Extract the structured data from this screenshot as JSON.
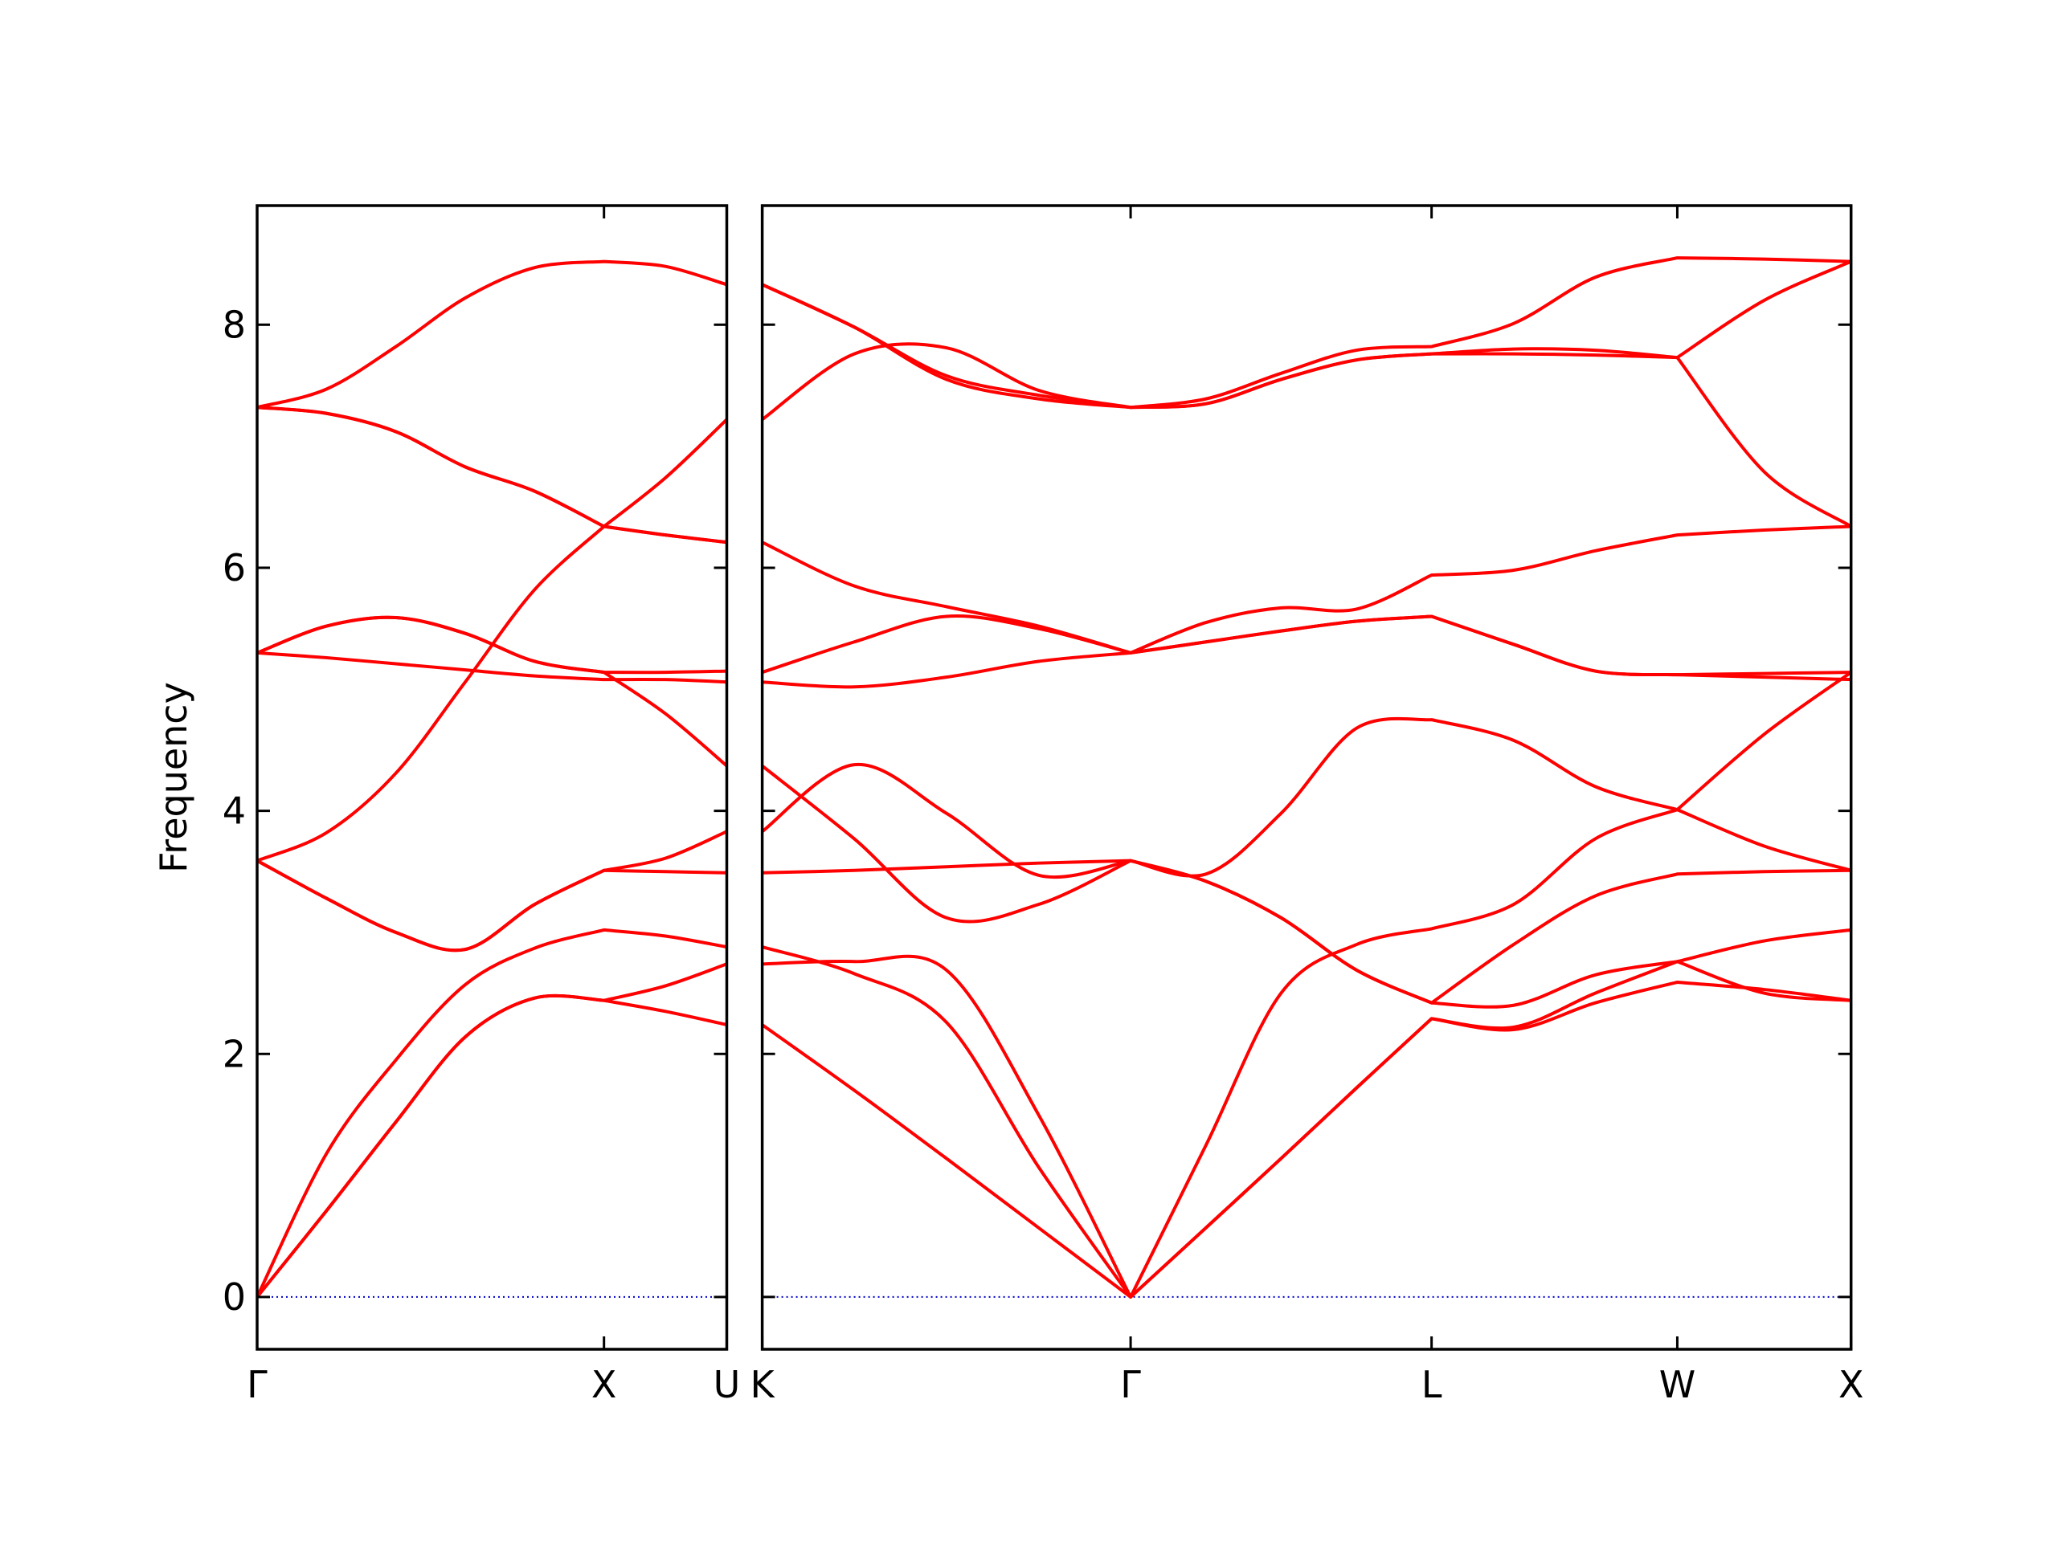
{
  "chart_data": [
    {
      "type": "line",
      "ylabel": "Frequency",
      "color": "#ff0000",
      "zero_line": 0,
      "zero_line_color": "#0000cc",
      "xlim": [
        0,
        1.354
      ],
      "ylim": [
        -0.43,
        8.98
      ],
      "xticks": [
        {
          "value": 0,
          "label": "Γ"
        },
        {
          "value": 1,
          "label": "X"
        },
        {
          "value": 1.354,
          "label": "U"
        }
      ],
      "yticks": [
        0,
        2,
        4,
        6,
        8
      ],
      "x": [
        0,
        0.2,
        0.4,
        0.6,
        0.8,
        1.0,
        1.177,
        1.354
      ],
      "series": [
        {
          "values": [
            0,
            0.71,
            1.44,
            2.14,
            2.46,
            2.44,
            2.35,
            2.24
          ]
        },
        {
          "values": [
            0,
            0.71,
            1.44,
            2.14,
            2.46,
            2.44,
            2.56,
            2.74
          ]
        },
        {
          "values": [
            0,
            1.18,
            1.95,
            2.57,
            2.87,
            3.02,
            2.97,
            2.88
          ]
        },
        {
          "values": [
            3.59,
            3.28,
            3.0,
            2.86,
            3.23,
            3.51,
            3.61,
            3.83
          ]
        },
        {
          "values": [
            3.59,
            3.28,
            3.0,
            2.86,
            3.23,
            3.51,
            3.5,
            3.49
          ]
        },
        {
          "values": [
            3.59,
            3.82,
            4.31,
            5.06,
            5.82,
            6.34,
            6.74,
            7.22
          ]
        },
        {
          "values": [
            5.3,
            5.26,
            5.21,
            5.16,
            5.11,
            5.08,
            5.08,
            5.06
          ]
        },
        {
          "values": [
            5.3,
            5.52,
            5.59,
            5.46,
            5.23,
            5.14,
            4.8,
            4.37
          ]
        },
        {
          "values": [
            5.3,
            5.52,
            5.59,
            5.46,
            5.23,
            5.14,
            5.14,
            5.15
          ]
        },
        {
          "values": [
            7.32,
            7.27,
            7.12,
            6.83,
            6.63,
            6.34,
            6.27,
            6.21
          ]
        },
        {
          "values": [
            7.32,
            7.27,
            7.12,
            6.83,
            6.63,
            6.34,
            6.27,
            6.21
          ]
        },
        {
          "values": [
            7.32,
            7.47,
            7.82,
            8.22,
            8.47,
            8.52,
            8.48,
            8.33
          ]
        }
      ]
    },
    {
      "type": "line",
      "color": "#ff0000",
      "zero_line": 0,
      "zero_line_color": "#0000cc",
      "xlim": [
        1.354,
        4.487
      ],
      "ylim": [
        -0.43,
        8.98
      ],
      "xticks": [
        {
          "value": 1.354,
          "label": "K"
        },
        {
          "value": 2.414,
          "label": "Γ"
        },
        {
          "value": 3.28,
          "label": "L"
        },
        {
          "value": 3.987,
          "label": "W"
        },
        {
          "value": 4.487,
          "label": "X"
        }
      ],
      "x": [
        1.354,
        1.619,
        1.884,
        2.149,
        2.414,
        2.631,
        2.847,
        3.064,
        3.28,
        3.516,
        3.751,
        3.987,
        4.237,
        4.487
      ],
      "series": [
        {
          "values": [
            2.24,
            1.7,
            1.14,
            0.57,
            0,
            0.57,
            1.14,
            1.72,
            2.29,
            2.2,
            2.42,
            2.59,
            2.53,
            2.44
          ]
        },
        {
          "values": [
            2.88,
            2.66,
            2.26,
            1.07,
            0,
            0.57,
            1.14,
            1.72,
            2.29,
            2.22,
            2.5,
            2.76,
            2.5,
            2.44
          ]
        },
        {
          "values": [
            2.74,
            2.76,
            2.69,
            1.5,
            0,
            1.25,
            2.5,
            2.9,
            3.03,
            3.23,
            3.77,
            4.01,
            4.63,
            5.14
          ]
        },
        {
          "values": [
            3.49,
            3.51,
            3.54,
            3.57,
            3.59,
            3.42,
            3.12,
            2.69,
            2.42,
            2.9,
            3.3,
            3.48,
            3.5,
            3.51
          ]
        },
        {
          "values": [
            3.83,
            4.38,
            3.98,
            3.47,
            3.59,
            3.42,
            3.12,
            2.69,
            2.42,
            2.4,
            2.65,
            2.76,
            2.93,
            3.02
          ]
        },
        {
          "values": [
            4.37,
            3.77,
            3.12,
            3.23,
            3.59,
            3.48,
            3.98,
            4.68,
            4.75,
            4.58,
            4.2,
            4.01,
            3.71,
            3.51
          ]
        },
        {
          "values": [
            5.06,
            5.02,
            5.1,
            5.23,
            5.3,
            5.39,
            5.48,
            5.56,
            5.6,
            5.37,
            5.15,
            5.12,
            5.1,
            5.08
          ]
        },
        {
          "values": [
            5.14,
            5.39,
            5.6,
            5.5,
            5.3,
            5.39,
            5.48,
            5.56,
            5.6,
            5.37,
            5.15,
            5.12,
            5.13,
            5.14
          ]
        },
        {
          "values": [
            6.21,
            5.85,
            5.68,
            5.52,
            5.3,
            5.55,
            5.67,
            5.66,
            5.94,
            5.98,
            6.14,
            6.27,
            6.31,
            6.34
          ]
        },
        {
          "values": [
            7.22,
            7.76,
            7.81,
            7.46,
            7.32,
            7.35,
            7.55,
            7.71,
            7.76,
            7.76,
            7.75,
            7.73,
            8.2,
            8.52
          ]
        },
        {
          "values": [
            8.33,
            7.98,
            7.58,
            7.42,
            7.32,
            7.35,
            7.55,
            7.71,
            7.76,
            7.8,
            7.79,
            7.73,
            6.79,
            6.34
          ]
        },
        {
          "values": [
            8.33,
            7.98,
            7.55,
            7.39,
            7.32,
            7.39,
            7.6,
            7.79,
            7.82,
            8.01,
            8.39,
            8.55,
            8.54,
            8.52
          ]
        }
      ]
    }
  ]
}
